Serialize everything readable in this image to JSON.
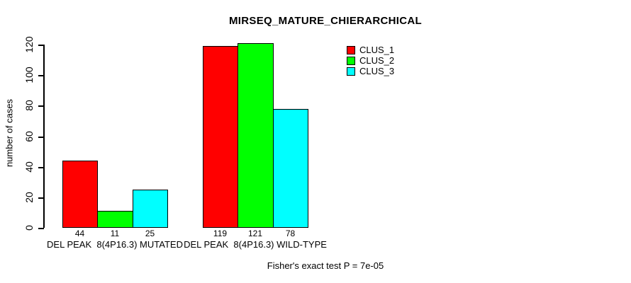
{
  "chart_data": {
    "type": "bar",
    "title": "MIRSEQ_MATURE_CHIERARCHICAL",
    "ylabel": "number of cases",
    "xlabel": "",
    "categories": [
      "DEL PEAK  8(4P16.3) MUTATED",
      "DEL PEAK  8(4P16.3) WILD-TYPE"
    ],
    "series": [
      {
        "name": "CLUS_1",
        "color": "#FF0000",
        "values": [
          44,
          119
        ]
      },
      {
        "name": "CLUS_2",
        "color": "#00FF00",
        "values": [
          11,
          121
        ]
      },
      {
        "name": "CLUS_3",
        "color": "#00FFFF",
        "values": [
          25,
          78
        ]
      }
    ],
    "bar_value_labels": [
      [
        44,
        11,
        25
      ],
      [
        119,
        121,
        78
      ]
    ],
    "yticks": [
      0,
      20,
      40,
      60,
      80,
      100,
      120
    ],
    "ylim": [
      0,
      120
    ],
    "grid": false,
    "legend_position": "top-right",
    "annotation": "Fisher's exact test P = 7e-05"
  },
  "colors": {
    "background": "#FFFFFF",
    "axis": "#000000",
    "text": "#000000",
    "bar_border": "#000000"
  }
}
